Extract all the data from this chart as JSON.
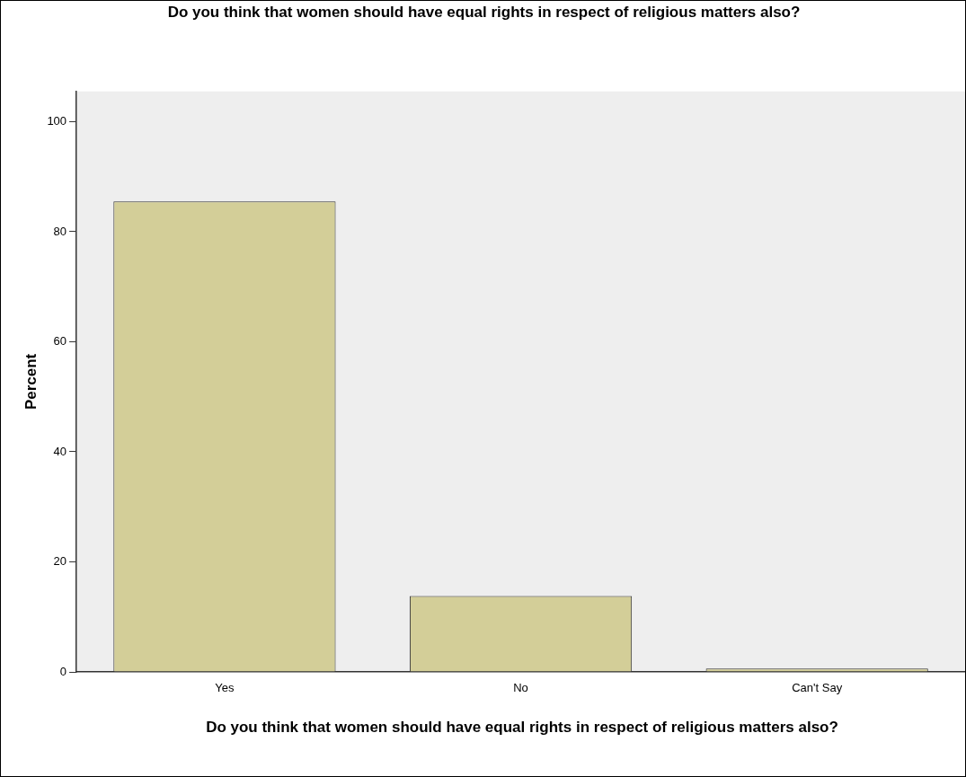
{
  "chart_data": {
    "type": "bar",
    "title": "Do you think that women should have equal rights in respect of religious matters also?",
    "xlabel": "Do you think that women should have equal rights in respect of religious matters also?",
    "ylabel": "Percent",
    "categories": [
      "Yes",
      "No",
      "Can't Say"
    ],
    "values": [
      85.5,
      13.8,
      0.6
    ],
    "color": "#d3ce98",
    "ylim": [
      0,
      105.5
    ],
    "yticks": [
      0,
      20,
      40,
      60,
      80,
      100
    ],
    "grid": false,
    "legend": false
  }
}
